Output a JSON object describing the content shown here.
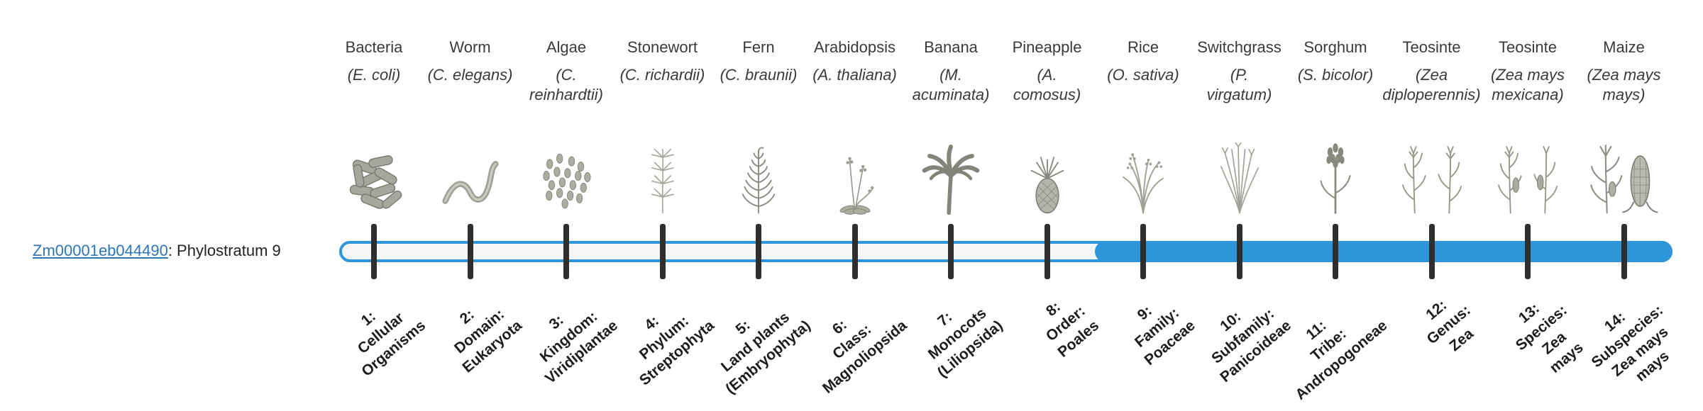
{
  "gene": {
    "link_text": "Zm00001eb044490",
    "suffix": ": Phylostratum 9",
    "link_color": "#2e75b6"
  },
  "track": {
    "accent": "#2E96D8",
    "unfilled_color": "#f3f5f6",
    "tick_color": "#2e2e2e",
    "filled_from_stratum": 9,
    "total_strata": 14
  },
  "species": [
    {
      "common": "Bacteria",
      "scientific": "(E. coli)",
      "icon": "bacteria-illustration"
    },
    {
      "common": "Worm",
      "scientific": "(C. elegans)",
      "icon": "worm-illustration"
    },
    {
      "common": "Algae",
      "scientific": "(C.\nreinhardtii)",
      "icon": "algae-illustration"
    },
    {
      "common": "Stonewort",
      "scientific": "(C. richardii)",
      "icon": "stonewort-illustration"
    },
    {
      "common": "Fern",
      "scientific": "(C. braunii)",
      "icon": "fern-illustration"
    },
    {
      "common": "Arabidopsis",
      "scientific": "(A. thaliana)",
      "icon": "arabidopsis-illustration"
    },
    {
      "common": "Banana",
      "scientific": "(M.\nacuminata)",
      "icon": "banana-illustration"
    },
    {
      "common": "Pineapple",
      "scientific": "(A.\ncomosus)",
      "icon": "pineapple-illustration"
    },
    {
      "common": "Rice",
      "scientific": "(O. sativa)",
      "icon": "rice-illustration"
    },
    {
      "common": "Switchgrass",
      "scientific": "(P.\nvirgatum)",
      "icon": "switchgrass-illustration"
    },
    {
      "common": "Sorghum",
      "scientific": "(S. bicolor)",
      "icon": "sorghum-illustration"
    },
    {
      "common": "Teosinte",
      "scientific": "(Zea\ndiploperennis)",
      "icon": "teosinte-diploperennis-illustration"
    },
    {
      "common": "Teosinte",
      "scientific": "(Zea mays\nmexicana)",
      "icon": "teosinte-mexicana-illustration"
    },
    {
      "common": "Maize",
      "scientific": "(Zea mays\nmays)",
      "icon": "maize-illustration"
    }
  ],
  "strata": [
    {
      "number": 1,
      "lines": [
        "1:",
        "Cellular",
        "Organisms"
      ]
    },
    {
      "number": 2,
      "lines": [
        "2:",
        "Domain:",
        "Eukaryota"
      ]
    },
    {
      "number": 3,
      "lines": [
        "3:",
        "Kingdom:",
        "Viridiplantae"
      ]
    },
    {
      "number": 4,
      "lines": [
        "4:",
        "Phylum:",
        "Streptophyta"
      ]
    },
    {
      "number": 5,
      "lines": [
        "5:",
        "Land plants",
        "(Embryophyta)"
      ]
    },
    {
      "number": 6,
      "lines": [
        "6:",
        "Class:",
        "Magnoliopsida"
      ]
    },
    {
      "number": 7,
      "lines": [
        "7:",
        "Monocots",
        "(Liliopsida)"
      ]
    },
    {
      "number": 8,
      "lines": [
        "8:",
        "Order:",
        "Poales"
      ]
    },
    {
      "number": 9,
      "lines": [
        "9:",
        "Family:",
        "Poaceae"
      ]
    },
    {
      "number": 10,
      "lines": [
        "10:",
        "Subfamily:",
        "Panicoideae"
      ]
    },
    {
      "number": 11,
      "lines": [
        "11:",
        "Tribe:",
        "Andropogoneae"
      ]
    },
    {
      "number": 12,
      "lines": [
        "12:",
        "Genus:",
        "Zea"
      ]
    },
    {
      "number": 13,
      "lines": [
        "13:",
        "Species:",
        "Zea",
        "mays"
      ]
    },
    {
      "number": 14,
      "lines": [
        "14:",
        "Subspecies:",
        "Zea mays",
        "mays"
      ]
    }
  ]
}
